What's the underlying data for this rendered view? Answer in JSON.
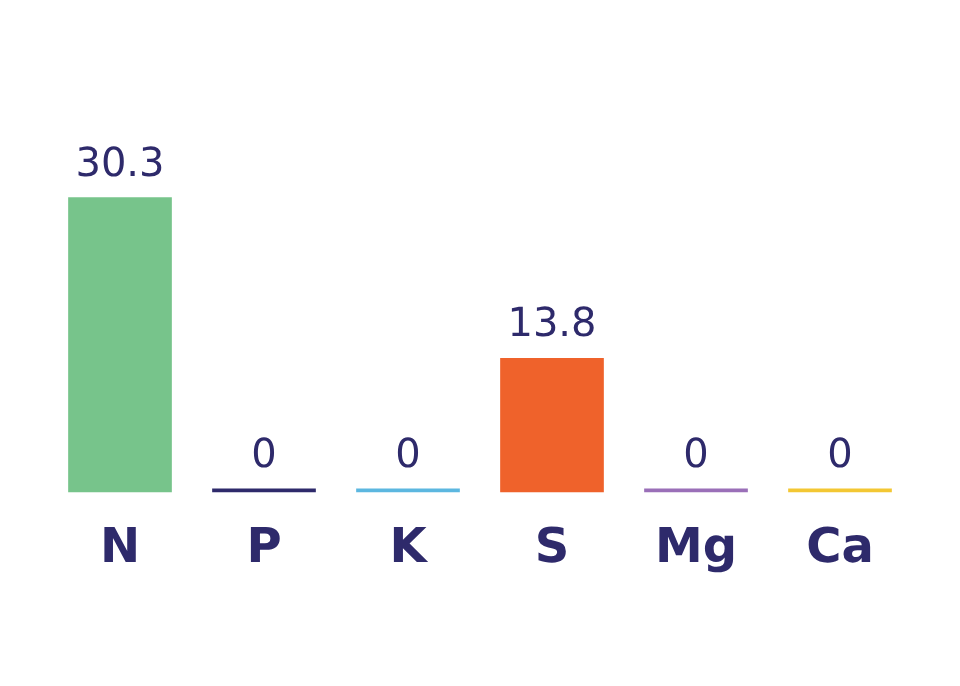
{
  "chart_data": {
    "type": "bar",
    "categories": [
      "N",
      "P",
      "K",
      "S",
      "Mg",
      "Ca"
    ],
    "values": [
      30.3,
      0,
      0,
      13.8,
      0,
      0
    ],
    "colors": [
      "#77c48b",
      "#2e2a6b",
      "#5cb7e0",
      "#ef622b",
      "#9a6fb8",
      "#f3c733"
    ],
    "data_labels": true,
    "grid": false,
    "legend": false
  }
}
